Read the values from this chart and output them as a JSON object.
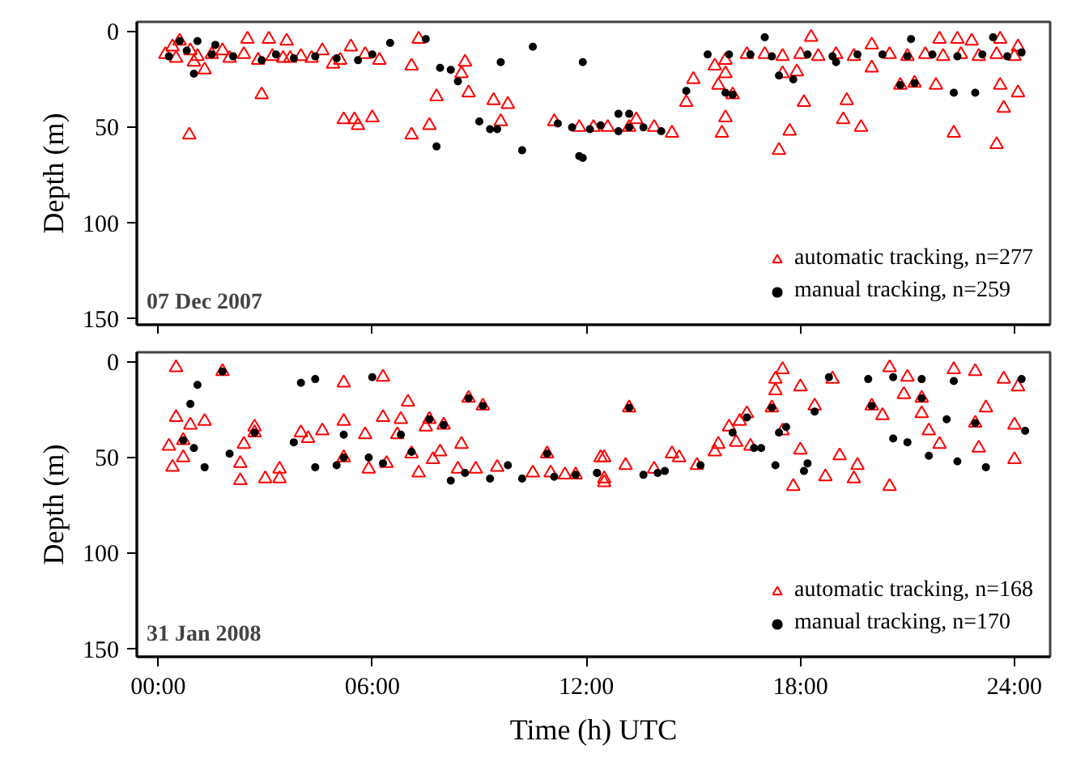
{
  "chart_data": [
    {
      "type": "scatter",
      "annotations": [
        "07 Dec 2007"
      ],
      "ylabel": "Depth (m)",
      "xlim": [
        -0.6,
        25.0
      ],
      "ylim": [
        153,
        -5
      ],
      "xticks": [
        {
          "value": 0,
          "label": null
        },
        {
          "value": 6,
          "label": null
        },
        {
          "value": 12,
          "label": null
        },
        {
          "value": 18,
          "label": null
        },
        {
          "value": 24,
          "label": null
        }
      ],
      "yticks": [
        0,
        50,
        100,
        150
      ],
      "tick_labels": "y",
      "legend": "bottom right",
      "grid": false,
      "series": [
        {
          "name": "automatic tracking, n=277",
          "color": "#ff0000",
          "marker": "triangle",
          "x": [
            0.2,
            0.4,
            0.5,
            0.6,
            0.9,
            1.0,
            1.1,
            1.3,
            0.87,
            1.5,
            1.8,
            2.0,
            2.4,
            2.5,
            2.8,
            3.1,
            3.2,
            3.5,
            3.6,
            3.7,
            4.0,
            4.3,
            4.6,
            4.9,
            5.1,
            5.4,
            5.8,
            6.2,
            2.9,
            5.2,
            5.5,
            5.6,
            6.0,
            7.1,
            7.6,
            7.3,
            7.1,
            7.8,
            8.6,
            8.5,
            8.7,
            9.4,
            9.8,
            9.6,
            11.1,
            11.8,
            12.2,
            12.6,
            13.2,
            13.4,
            13.9,
            14.4,
            14.8,
            15.0,
            15.6,
            15.9,
            15.7,
            15.9,
            16.1,
            15.9,
            15.8,
            16.5,
            17.0,
            17.5,
            18.0,
            18.5,
            19.0,
            19.5,
            20.5,
            21.0,
            18.3,
            20.0,
            17.4,
            17.7,
            17.5,
            17.9,
            18.1,
            19.3,
            19.2,
            19.7,
            20.0,
            20.8,
            21.2,
            21.8,
            22.3,
            23.5,
            21.9,
            22.4,
            22.8,
            23.6,
            24.1,
            23.6,
            24.1,
            23.7,
            21.5,
            22.0,
            22.5,
            23.0,
            23.5,
            24.0
          ],
          "values": [
            12,
            8,
            14,
            5,
            10,
            16,
            13,
            20,
            54,
            12,
            10,
            14,
            12,
            4,
            15,
            4,
            13,
            14,
            5,
            14,
            13,
            14,
            10,
            17,
            15,
            8,
            12,
            15,
            33,
            46,
            46,
            49,
            45,
            54,
            49,
            4,
            18,
            34,
            16,
            22,
            32,
            36,
            38,
            47,
            47,
            50,
            50,
            50,
            50,
            46,
            50,
            53,
            37,
            25,
            18,
            15,
            28,
            22,
            33,
            45,
            53,
            12,
            12,
            13,
            12,
            13,
            12,
            13,
            12,
            13,
            3,
            7,
            62,
            52,
            22,
            21,
            37,
            36,
            46,
            50,
            19,
            28,
            27,
            28,
            53,
            59,
            4,
            4,
            5,
            4,
            8,
            28,
            32,
            40,
            12,
            13,
            12,
            13,
            12,
            13
          ]
        },
        {
          "name": "manual tracking, n=259",
          "color": "#000000",
          "marker": "circle",
          "x": [
            0.6,
            1.1,
            1.6,
            1.0,
            0.3,
            0.8,
            1.5,
            2.1,
            2.9,
            3.3,
            3.8,
            4.4,
            5.0,
            5.6,
            6.0,
            6.5,
            7.5,
            7.9,
            8.2,
            8.4,
            7.8,
            9.6,
            10.5,
            10.2,
            11.9,
            11.8,
            9.0,
            9.3,
            9.5,
            11.2,
            11.6,
            12.1,
            12.4,
            12.9,
            13.2,
            13.6,
            14.1,
            17.0,
            21.1,
            22.3,
            22.9,
            23.4,
            14.8,
            15.4,
            17.4,
            17.8,
            19.0,
            13.2,
            12.9,
            11.9,
            16.0,
            16.6,
            17.2,
            18.2,
            18.9,
            19.6,
            20.3,
            21.0,
            21.7,
            22.4,
            23.1,
            23.8,
            24.2,
            20.8,
            21.2,
            15.9,
            16.1
          ],
          "values": [
            5,
            5,
            7,
            22,
            13,
            10,
            12,
            13,
            15,
            12,
            14,
            13,
            14,
            15,
            12,
            6,
            4,
            19,
            20,
            26,
            60,
            16,
            8,
            62,
            16,
            65,
            47,
            51,
            51,
            48,
            50,
            51,
            49,
            52,
            50,
            50,
            52,
            3,
            4,
            32,
            32,
            3,
            31,
            12,
            23,
            25,
            16,
            43,
            43,
            66,
            12,
            12,
            13,
            12,
            13,
            12,
            12,
            13,
            12,
            13,
            12,
            13,
            11,
            28,
            27,
            32,
            33
          ]
        }
      ]
    },
    {
      "type": "scatter",
      "annotations": [
        "31 Jan 2008"
      ],
      "xlabel": "Time (h) UTC",
      "ylabel": "Depth (m)",
      "xlim": [
        -0.6,
        25.0
      ],
      "ylim": [
        154,
        -5
      ],
      "xticks": [
        {
          "value": 0,
          "label": "00:00"
        },
        {
          "value": 6,
          "label": "06:00"
        },
        {
          "value": 12,
          "label": "12:00"
        },
        {
          "value": 18,
          "label": "18:00"
        },
        {
          "value": 24,
          "label": "24:00"
        }
      ],
      "yticks": [
        0,
        50,
        100,
        150
      ],
      "legend": "bottom right",
      "grid": false,
      "series": [
        {
          "name": "automatic tracking, n=168",
          "color": "#ff0000",
          "marker": "triangle",
          "x": [
            0.5,
            0.4,
            0.3,
            0.5,
            0.7,
            0.7,
            0.9,
            1.3,
            1.8,
            2.3,
            2.3,
            2.4,
            2.7,
            2.7,
            3.0,
            3.4,
            3.4,
            4.0,
            4.2,
            4.6,
            5.2,
            5.2,
            5.2,
            5.8,
            5.9,
            6.3,
            6.3,
            6.4,
            6.8,
            6.7,
            7.0,
            7.1,
            7.3,
            7.6,
            8.0,
            7.5,
            7.7,
            7.9,
            8.5,
            8.7,
            9.1,
            8.4,
            8.9,
            9.5,
            10.5,
            10.9,
            11.0,
            11.4,
            11.7,
            12.4,
            12.5,
            13.2,
            12.5,
            12.5,
            13.1,
            13.9,
            14.4,
            14.6,
            15.1,
            15.7,
            15.6,
            16.0,
            16.3,
            16.5,
            16.2,
            16.6,
            17.2,
            17.3,
            17.5,
            17.3,
            17.5,
            18.0,
            18.0,
            17.8,
            18.4,
            18.9,
            18.7,
            19.1,
            19.5,
            19.6,
            20.0,
            20.3,
            20.5,
            20.5,
            20.9,
            21.0,
            21.4,
            21.4,
            21.6,
            21.9,
            22.3,
            22.9,
            23.2,
            22.9,
            23.0,
            23.7,
            24.1,
            24.0,
            24.0
          ],
          "values": [
            3,
            55,
            44,
            29,
            50,
            41,
            33,
            31,
            5,
            62,
            53,
            43,
            34,
            37,
            61,
            61,
            56,
            37,
            40,
            36,
            11,
            50,
            31,
            38,
            56,
            8,
            29,
            53,
            30,
            38,
            21,
            48,
            58,
            30,
            33,
            34,
            51,
            47,
            43,
            19,
            23,
            56,
            56,
            55,
            58,
            48,
            58,
            59,
            59,
            50,
            61,
            24,
            50,
            63,
            54,
            56,
            48,
            50,
            54,
            43,
            47,
            34,
            31,
            27,
            42,
            44,
            24,
            9,
            4,
            15,
            36,
            13,
            46,
            65,
            23,
            9,
            60,
            49,
            61,
            54,
            23,
            28,
            65,
            3,
            17,
            8,
            27,
            19,
            36,
            43,
            4,
            5,
            24,
            32,
            45,
            9,
            13,
            33,
            51
          ]
        },
        {
          "name": "manual tracking, n=170",
          "color": "#000000",
          "marker": "circle",
          "x": [
            1.1,
            0.9,
            0.7,
            1.0,
            1.3,
            2.0,
            3.8,
            4.0,
            4.4,
            4.4,
            5.0,
            5.9,
            6.0,
            5.2,
            7.1,
            8.2,
            8.6,
            9.3,
            9.8,
            10.2,
            11.1,
            12.3,
            1.8,
            2.7,
            5.2,
            6.3,
            6.8,
            7.6,
            8.0,
            8.7,
            9.1,
            10.9,
            11.7,
            18.8,
            19.9,
            20.6,
            21.4,
            22.3,
            24.2,
            24.3,
            20.6,
            21.0,
            21.6,
            22.4,
            23.2,
            22.1,
            17.3,
            18.1,
            18.2,
            18.4,
            17.6,
            17.4,
            16.9,
            16.7,
            12.3,
            13.6,
            14.0,
            14.2,
            15.2,
            16.1,
            16.5,
            13.2,
            17.2,
            20.0,
            21.4,
            22.9
          ],
          "values": [
            12,
            22,
            41,
            45,
            55,
            48,
            42,
            11,
            9,
            55,
            54,
            50,
            8,
            38,
            47,
            62,
            58,
            61,
            54,
            61,
            60,
            58,
            5,
            37,
            50,
            53,
            38,
            30,
            33,
            19,
            23,
            48,
            59,
            8,
            9,
            8,
            9,
            10,
            9,
            36,
            40,
            42,
            49,
            52,
            55,
            30,
            54,
            57,
            53,
            26,
            34,
            37,
            45,
            45,
            58,
            59,
            58,
            57,
            54,
            37,
            29,
            24,
            24,
            23,
            19,
            32
          ]
        }
      ]
    }
  ]
}
